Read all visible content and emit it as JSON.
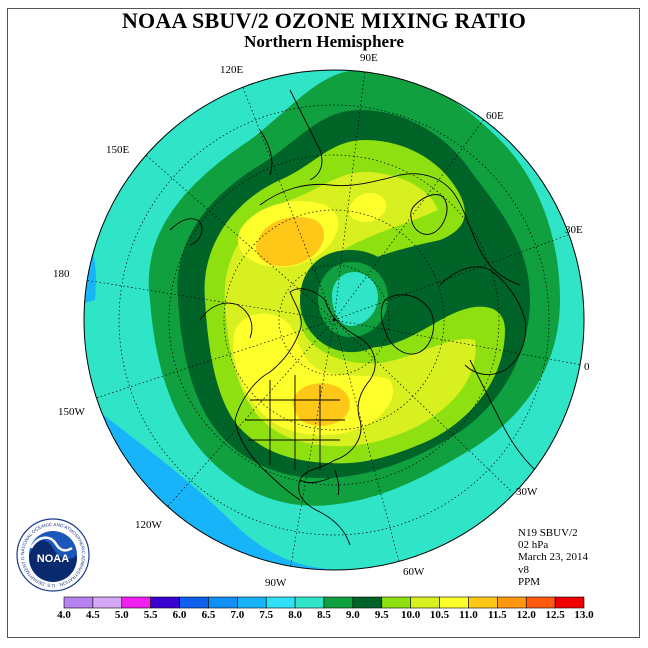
{
  "title": "NOAA SBUV/2 OZONE MIXING RATIO",
  "subtitle": "Northern Hemisphere",
  "longitude_labels": {
    "e90": "90E",
    "e60": "60E",
    "e30": "30E",
    "zero": "0",
    "w30": "30W",
    "w60": "60W",
    "w90": "90W",
    "w120": "120W",
    "w150": "150W",
    "d180": "180",
    "e150": "150E",
    "e120": "120E"
  },
  "info": {
    "instrument": "N19 SBUV/2",
    "pressure": "02 hPa",
    "date": "March 23, 2014",
    "version": "v8",
    "units": "PPM"
  },
  "logo": {
    "text": "NOAA",
    "ring_text": "NATIONAL OCEANIC AND ATMOSPHERIC ADMINISTRATION · U.S. DEPARTMENT OF COMMERCE",
    "icon": "noaa-logo-icon"
  },
  "colorbar": {
    "ticks": [
      "4.0",
      "4.5",
      "5.0",
      "5.5",
      "6.0",
      "6.5",
      "7.0",
      "7.5",
      "8.0",
      "8.5",
      "9.0",
      "9.5",
      "10.0",
      "10.5",
      "11.0",
      "11.5",
      "12.0",
      "12.5",
      "13.0"
    ],
    "colors": [
      "#b682f0",
      "#d4a8f4",
      "#f020f0",
      "#3c00d0",
      "#1060ee",
      "#1090f4",
      "#18b4fa",
      "#30e0f6",
      "#30e4c8",
      "#10a040",
      "#006428",
      "#8ee010",
      "#d8f020",
      "#ffff2c",
      "#ffc818",
      "#ff9810",
      "#ff5a10",
      "#f00000",
      "#8c5a32"
    ]
  },
  "colors": {
    "ocean_edge": "#30e4c8",
    "deep_green": "#006428",
    "coast": "#000000"
  }
}
